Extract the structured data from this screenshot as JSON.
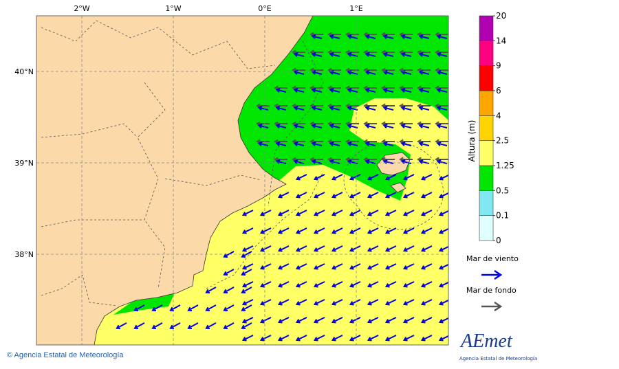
{
  "map": {
    "lon_ticks": [
      {
        "value": -2,
        "label": "2°W"
      },
      {
        "value": -1,
        "label": "1°W"
      },
      {
        "value": 0,
        "label": "0°E"
      },
      {
        "value": 1,
        "label": "1°E"
      }
    ],
    "lat_ticks": [
      {
        "value": 40,
        "label": "40°N"
      },
      {
        "value": 39,
        "label": "39°N"
      },
      {
        "value": 38,
        "label": "38°N"
      }
    ]
  },
  "colorbar": {
    "title": "Altura (m)",
    "ticks": [
      0,
      0.1,
      0.5,
      1.25,
      2.5,
      4,
      6,
      9,
      14,
      20
    ],
    "colors": [
      "#e0ffff",
      "#80e8f0",
      "#00e600",
      "#ffff66",
      "#ffd400",
      "#ffa500",
      "#ff0000",
      "#ff0080",
      "#b000b0"
    ]
  },
  "legend": {
    "items": [
      {
        "label": "Mar de viento",
        "color": "#0000ee"
      },
      {
        "label": "Mar de fondo",
        "color": "#555555"
      }
    ]
  },
  "footer": "© Agencia Estatal de Meteorología",
  "logo": {
    "name": "AEmet",
    "subtitle": "Agencia Estatal de Meteorología"
  }
}
